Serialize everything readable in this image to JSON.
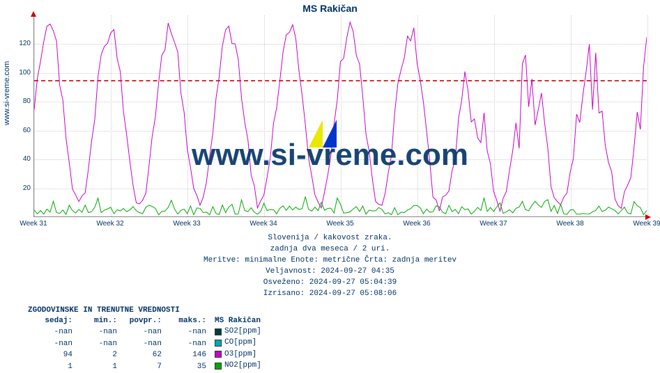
{
  "title": "MS Rakičan",
  "ylabel_link": "www.si-vreme.com",
  "watermark": "www.si-vreme.com",
  "chart": {
    "type": "line",
    "ylim": [
      0,
      140
    ],
    "ytick_step": 20,
    "xlim_weeks": [
      31,
      39
    ],
    "threshold": 95,
    "background_color": "#ffffff",
    "grid_color": "#cccccc",
    "threshold_color": "#cc3333",
    "axis_color": "#888888",
    "label_color": "#003366",
    "tick_fontsize": 10,
    "title_fontsize": 14,
    "series": {
      "O3": {
        "color": "#cc00cc",
        "stroke_width": 1
      },
      "NO2": {
        "color": "#00aa00",
        "stroke_width": 1
      }
    }
  },
  "xlabels": [
    "Week 31",
    "Week 32",
    "Week 33",
    "Week 34",
    "Week 35",
    "Week 36",
    "Week 37",
    "Week 38",
    "Week 39"
  ],
  "meta": {
    "line1": "Slovenija / kakovost zraka.",
    "line2": "zadnja dva meseca / 2 uri.",
    "line3": "Meritve: minimalne  Enote: metrične  Črta: zadnja meritev",
    "line4": "Veljavnost: 2024-09-27 04:35",
    "line5": "Osveženo: 2024-09-27 05:04:39",
    "line6": "Izrisano: 2024-09-27 05:08:06"
  },
  "table": {
    "title": "ZGODOVINSKE IN TRENUTNE VREDNOSTI",
    "headers": [
      "sedaj:",
      "min.:",
      "povpr.:",
      "maks.:"
    ],
    "legend_title": "MS Rakičan",
    "rows": [
      {
        "values": [
          "-nan",
          "-nan",
          "-nan",
          "-nan"
        ],
        "swatch": "#004040",
        "label": "SO2[ppm]"
      },
      {
        "values": [
          "-nan",
          "-nan",
          "-nan",
          "-nan"
        ],
        "swatch": "#00aaaa",
        "label": "CO[ppm]"
      },
      {
        "values": [
          "94",
          "2",
          "62",
          "146"
        ],
        "swatch": "#cc00cc",
        "label": "O3[ppm]"
      },
      {
        "values": [
          "1",
          "1",
          "7",
          "35"
        ],
        "swatch": "#00aa00",
        "label": "NO2[ppm]"
      }
    ]
  },
  "logo_colors": {
    "left": "#e8e800",
    "right": "#0033cc"
  }
}
